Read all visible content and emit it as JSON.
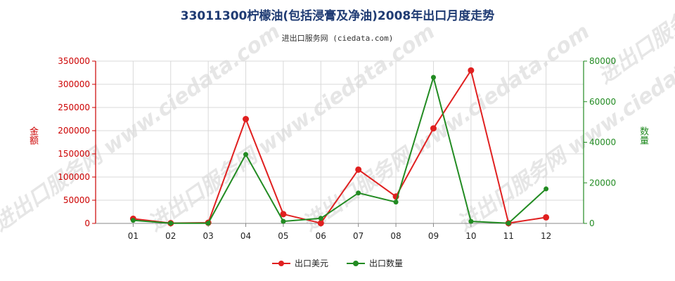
{
  "header": {
    "title": "33011300柠檬油(包括浸膏及净油)2008年出口月度走势",
    "subtitle": "进出口服务网 (ciedata.com)"
  },
  "watermark": "进出口服务网 www.ciedata.com",
  "chart_data": {
    "type": "line",
    "categories": [
      "01",
      "02",
      "03",
      "04",
      "05",
      "06",
      "07",
      "08",
      "09",
      "10",
      "11",
      "12"
    ],
    "y_left": {
      "label": "金额",
      "ticks": [
        "0",
        "50000",
        "100000",
        "150000",
        "200000",
        "250000",
        "300000",
        "350000"
      ],
      "range": [
        0,
        350000
      ],
      "color": "#cc0000"
    },
    "y_right": {
      "label": "数量",
      "ticks": [
        "0",
        "20000",
        "40000",
        "60000",
        "80000"
      ],
      "range": [
        0,
        80000
      ],
      "color": "#228b22"
    },
    "grid": true,
    "legend_position": "bottom",
    "series": [
      {
        "name": "出口美元",
        "axis": "left",
        "color": "#e02020",
        "values": [
          10000,
          500,
          1500,
          225000,
          20000,
          500,
          116000,
          58000,
          205000,
          330000,
          500,
          13000
        ]
      },
      {
        "name": "出口数量",
        "axis": "right",
        "color": "#228b22",
        "values": [
          1500,
          100,
          100,
          34000,
          1000,
          2500,
          15000,
          10500,
          72000,
          1000,
          100,
          17000
        ]
      }
    ]
  }
}
